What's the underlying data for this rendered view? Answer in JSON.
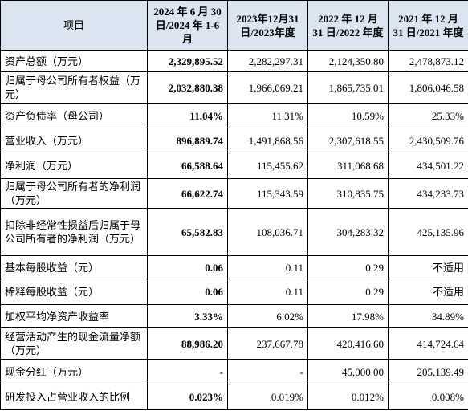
{
  "table": {
    "header": [
      "项目",
      "2024 年 6 月 30 日/2024 年 1-6 月",
      "2023年12月31日/2023年度",
      "2022 年 12 月 31 日/2022 年度",
      "2021 年 12 月 31 日/2021 年度"
    ],
    "rows": [
      [
        "资产总额（万元）",
        "2,329,895.52",
        "2,282,297.31",
        "2,124,350.80",
        "2,478,873.12"
      ],
      [
        "归属于母公司所有者权益（万元）",
        "2,032,880.38",
        "1,966,069.21",
        "1,865,735.01",
        "1,806,046.58"
      ],
      [
        "资产负债率（母公司）",
        "11.04%",
        "11.31%",
        "10.59%",
        "25.33%"
      ],
      [
        "营业收入（万元）",
        "896,889.74",
        "1,491,868.56",
        "2,307,618.55",
        "2,430,509.76"
      ],
      [
        "净利润（万元）",
        "66,588.64",
        "115,455.62",
        "311,068.68",
        "434,501.22"
      ],
      [
        "归属于母公司所有者的净利润（万元）",
        "66,622.74",
        "115,343.59",
        "310,835.75",
        "434,233.73"
      ],
      [
        "扣除非经常性损益后归属于母公司所有者的净利润（万元）",
        "65,582.83",
        "108,036.71",
        "304,283.32",
        "425,135.96"
      ],
      [
        "基本每股收益（元）",
        "0.06",
        "0.11",
        "0.29",
        "不适用"
      ],
      [
        "稀释每股收益（元）",
        "0.06",
        "0.11",
        "0.29",
        "不适用"
      ],
      [
        "加权平均净资产收益率",
        "3.33%",
        "6.02%",
        "17.98%",
        "34.89%"
      ],
      [
        "经营活动产生的现金流量净额（万元）",
        "88,986.20",
        "237,667.78",
        "420,416.60",
        "414,724.64"
      ],
      [
        "现金分红（万元）",
        "-",
        "-",
        "45,000.00",
        "205,139.49"
      ],
      [
        "研发投入占营业收入的比例",
        "0.023%",
        "0.019%",
        "0.012%",
        "0.008%"
      ]
    ]
  }
}
